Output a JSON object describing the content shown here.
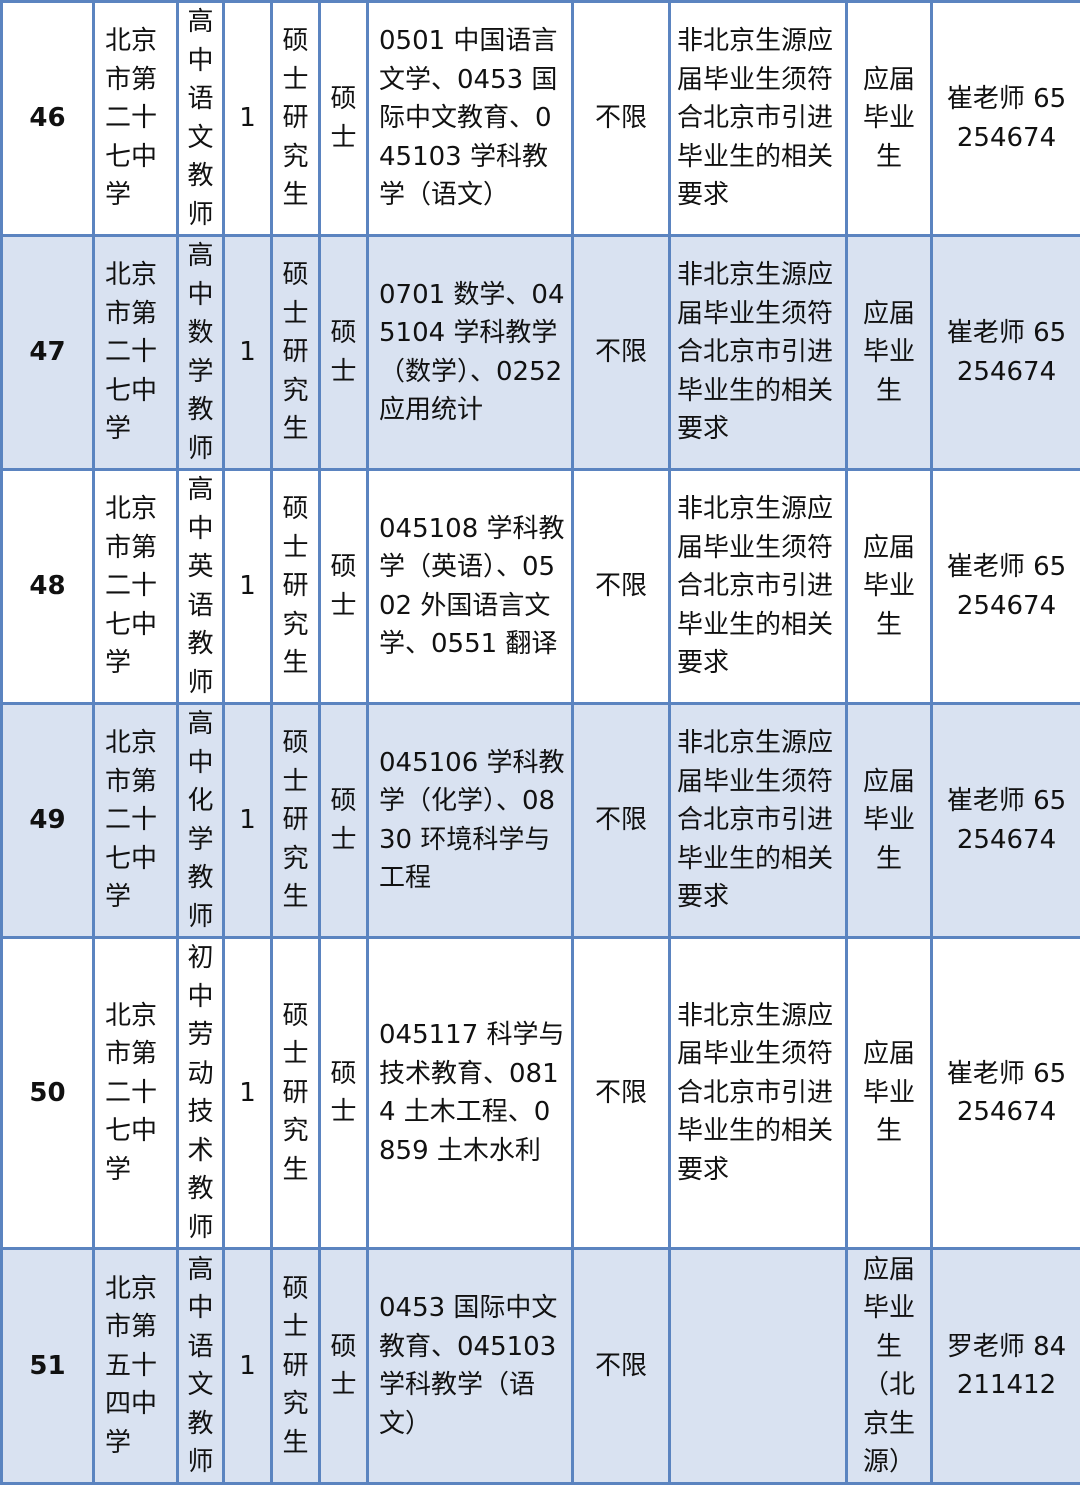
{
  "rows": [
    {
      "no": "46",
      "school": "北京市第二十七中学",
      "position": "高中语文教师",
      "count": "1",
      "education": "硕士研究生",
      "degree": "硕士",
      "major": "0501 中国语言文学、0453 国际中文教育、045103 学科教学（语文）",
      "household": "不限",
      "requirement": "非北京生源应届毕业生须符合北京市引进毕业生的相关要求",
      "identity": "应届毕业生",
      "contact": "崔老师 65254674",
      "shaded": false
    },
    {
      "no": "47",
      "school": "北京市第二十七中学",
      "position": "高中数学教师",
      "count": "1",
      "education": "硕士研究生",
      "degree": "硕士",
      "major": "0701 数学、045104 学科教学（数学）、0252 应用统计",
      "household": "不限",
      "requirement": "非北京生源应届毕业生须符合北京市引进毕业生的相关要求",
      "identity": "应届毕业生",
      "contact": "崔老师 65254674",
      "shaded": true
    },
    {
      "no": "48",
      "school": "北京市第二十七中学",
      "position": "高中英语教师",
      "count": "1",
      "education": "硕士研究生",
      "degree": "硕士",
      "major": "045108 学科教学（英语）、0502 外国语言文学、0551 翻译",
      "household": "不限",
      "requirement": "非北京生源应届毕业生须符合北京市引进毕业生的相关要求",
      "identity": "应届毕业生",
      "contact": "崔老师 65254674",
      "shaded": false
    },
    {
      "no": "49",
      "school": "北京市第二十七中学",
      "position": "高中化学教师",
      "count": "1",
      "education": "硕士研究生",
      "degree": "硕士",
      "major": "045106 学科教学（化学）、0830 环境科学与工程",
      "household": "不限",
      "requirement": "非北京生源应届毕业生须符合北京市引进毕业生的相关要求",
      "identity": "应届毕业生",
      "contact": "崔老师 65254674",
      "shaded": true
    },
    {
      "no": "50",
      "school": "北京市第二十七中学",
      "position": "初中劳动技术教师",
      "count": "1",
      "education": "硕士研究生",
      "degree": "硕士",
      "major": "045117 科学与技术教育、0814 土木工程、0859 土木水利",
      "household": "不限",
      "requirement": "非北京生源应届毕业生须符合北京市引进毕业生的相关要求",
      "identity": "应届毕业生",
      "contact": "崔老师 65254674",
      "shaded": false
    },
    {
      "no": "51",
      "school": "北京市第五十四中学",
      "position": "高中语文教师",
      "count": "1",
      "education": "硕士研究生",
      "degree": "硕士",
      "major": "0453 国际中文教育、045103 学科教学（语文）",
      "household": "不限",
      "requirement": "",
      "identity": "应届毕业生（北京生源）",
      "contact": "罗老师 84211412",
      "shaded": true
    }
  ],
  "colors": {
    "border": "#5b84c0",
    "shade": "#d9e2f1"
  }
}
